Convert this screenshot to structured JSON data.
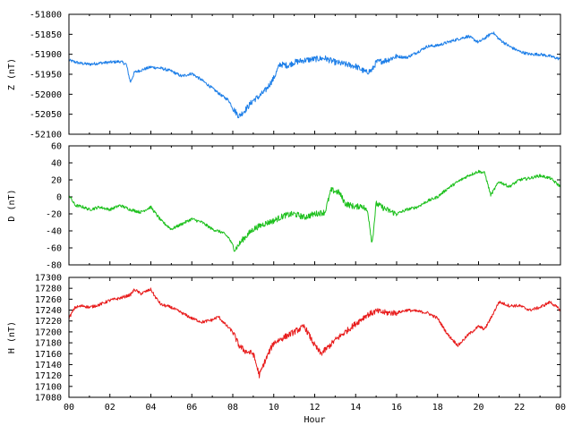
{
  "chart_data": [
    {
      "type": "line",
      "panel": "Z",
      "ylabel": "Z (nT)",
      "ylim": [
        -52100,
        -51800
      ],
      "yticks": [
        -51800,
        -51850,
        -51900,
        -51950,
        -52000,
        -52050,
        -52100
      ],
      "xlim": [
        0,
        24
      ],
      "color": "#1c7ee8",
      "series": [
        {
          "x": [
            0,
            0.5,
            1,
            1.5,
            2,
            2.5,
            2.8,
            3.0,
            3.2,
            3.5,
            4,
            4.5,
            5,
            5.5,
            6,
            6.5,
            7,
            7.5,
            7.8,
            8.0,
            8.3,
            8.6,
            9,
            9.3,
            9.6,
            10,
            10.3,
            10.7,
            11,
            11.5,
            12,
            12.5,
            13,
            13.5,
            14,
            14.5,
            14.8,
            15,
            15.5,
            16,
            16.5,
            17,
            17.5,
            18,
            18.5,
            19,
            19.5,
            20,
            20.3,
            20.7,
            21,
            21.5,
            22,
            22.5,
            23,
            23.5,
            24
          ],
          "y": [
            -51915,
            -51922,
            -51925,
            -51922,
            -51920,
            -51918,
            -51925,
            -51970,
            -51945,
            -51940,
            -51932,
            -51935,
            -51942,
            -51955,
            -51948,
            -51965,
            -51985,
            -52005,
            -52015,
            -52035,
            -52055,
            -52040,
            -52015,
            -52005,
            -51990,
            -51960,
            -51925,
            -51928,
            -51920,
            -51915,
            -51912,
            -51910,
            -51920,
            -51925,
            -51930,
            -51945,
            -51940,
            -51920,
            -51915,
            -51905,
            -51908,
            -51895,
            -51880,
            -51878,
            -51870,
            -51862,
            -51855,
            -51870,
            -51860,
            -51845,
            -51862,
            -51880,
            -51893,
            -51900,
            -51900,
            -51905,
            -51912
          ]
        }
      ]
    },
    {
      "type": "line",
      "panel": "D",
      "ylabel": "D (nT)",
      "ylim": [
        -80,
        60
      ],
      "yticks": [
        60,
        40,
        20,
        0,
        -20,
        -40,
        -60,
        -80
      ],
      "xlim": [
        0,
        24
      ],
      "color": "#1dc01d",
      "series": [
        {
          "x": [
            0,
            0.3,
            0.7,
            1,
            1.5,
            2,
            2.5,
            3,
            3.5,
            4,
            4.5,
            5,
            5.5,
            6,
            6.5,
            7,
            7.5,
            7.8,
            8.1,
            8.5,
            9,
            9.5,
            10,
            10.5,
            11,
            11.5,
            12,
            12.5,
            12.8,
            13.2,
            13.5,
            14,
            14.3,
            14.6,
            14.8,
            15,
            15.5,
            16,
            16.5,
            17,
            17.5,
            18,
            18.5,
            19,
            19.5,
            20,
            20.3,
            20.6,
            21,
            21.5,
            22,
            22.5,
            23,
            23.5,
            24
          ],
          "y": [
            2,
            -10,
            -12,
            -15,
            -12,
            -15,
            -10,
            -15,
            -18,
            -12,
            -28,
            -38,
            -32,
            -26,
            -30,
            -38,
            -42,
            -48,
            -62,
            -50,
            -38,
            -32,
            -28,
            -22,
            -20,
            -24,
            -20,
            -18,
            8,
            5,
            -8,
            -12,
            -10,
            -18,
            -55,
            -8,
            -15,
            -20,
            -15,
            -12,
            -5,
            0,
            10,
            18,
            25,
            30,
            28,
            2,
            18,
            12,
            20,
            22,
            25,
            22,
            12
          ]
        }
      ]
    },
    {
      "type": "line",
      "panel": "H",
      "ylabel": "H (nT)",
      "xlabel": "Hour",
      "ylim": [
        17080,
        17300
      ],
      "yticks": [
        17300,
        17280,
        17260,
        17240,
        17220,
        17200,
        17180,
        17160,
        17140,
        17120,
        17100,
        17080
      ],
      "xlim": [
        0,
        24
      ],
      "xticks": [
        "00",
        "02",
        "04",
        "06",
        "08",
        "10",
        "12",
        "14",
        "16",
        "18",
        "20",
        "22",
        "00"
      ],
      "color": "#e81c1c",
      "series": [
        {
          "x": [
            0,
            0.3,
            0.7,
            1,
            1.5,
            2,
            2.5,
            3,
            3.2,
            3.5,
            4,
            4.2,
            4.5,
            5,
            5.5,
            6,
            6.5,
            7,
            7.3,
            7.6,
            8,
            8.3,
            8.6,
            9,
            9.3,
            9.5,
            9.8,
            10,
            10.5,
            11,
            11.5,
            12,
            12.3,
            12.6,
            13,
            13.5,
            14,
            14.5,
            15,
            15.5,
            16,
            16.5,
            17,
            17.5,
            18,
            18.5,
            19,
            19.5,
            20,
            20.3,
            20.6,
            21,
            21.5,
            22,
            22.5,
            23,
            23.5,
            24
          ],
          "y": [
            17225,
            17245,
            17248,
            17245,
            17250,
            17258,
            17262,
            17268,
            17278,
            17270,
            17278,
            17265,
            17250,
            17245,
            17235,
            17225,
            17218,
            17222,
            17228,
            17215,
            17200,
            17175,
            17165,
            17160,
            17120,
            17140,
            17165,
            17180,
            17190,
            17200,
            17210,
            17175,
            17160,
            17170,
            17185,
            17200,
            17215,
            17230,
            17238,
            17235,
            17235,
            17240,
            17238,
            17235,
            17225,
            17195,
            17175,
            17195,
            17210,
            17205,
            17225,
            17255,
            17248,
            17248,
            17240,
            17245,
            17255,
            17240
          ]
        }
      ]
    }
  ]
}
